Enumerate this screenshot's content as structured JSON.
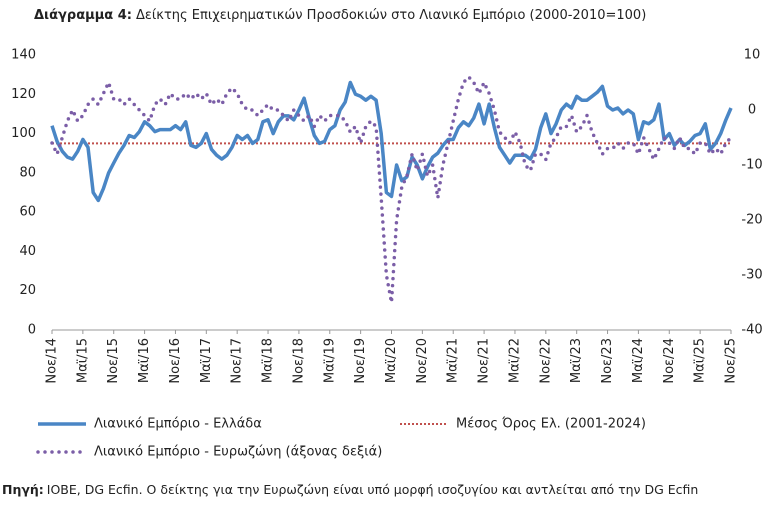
{
  "chart_data": {
    "type": "line",
    "title_bold": "Διάγραμμα 4:",
    "title": "Δείκτης Επιχειρηματικών Προσδοκιών στο Λιανικό Εμπόριο (2000-2010=100)",
    "source_label": "Πηγή:",
    "source": "ΙΟΒΕ, DG Ecfin. Ο δείκτης για την Ευρωζώνη είναι υπό μορφή ισοζυγίου και αντλείται από την DG Ecfin",
    "categories": [
      "Νοε/14",
      null,
      null,
      null,
      null,
      null,
      "Μαϊ/15",
      null,
      null,
      null,
      null,
      null,
      "Νοε/15",
      null,
      null,
      null,
      null,
      null,
      "Μαϊ/16",
      null,
      null,
      null,
      null,
      null,
      "Νοε/16",
      null,
      null,
      null,
      null,
      null,
      "Μαϊ/17",
      null,
      null,
      null,
      null,
      null,
      "Νοε/17",
      null,
      null,
      null,
      null,
      null,
      "Μαϊ/18",
      null,
      null,
      null,
      null,
      null,
      "Νοε/18",
      null,
      null,
      null,
      null,
      null,
      "Μαϊ/19",
      null,
      null,
      null,
      null,
      null,
      "Νοε/19",
      null,
      null,
      null,
      null,
      null,
      "Μαϊ/20",
      null,
      null,
      null,
      null,
      null,
      "Νοε/20",
      null,
      null,
      null,
      null,
      null,
      "Μαϊ/21",
      null,
      null,
      null,
      null,
      null,
      "Νοε/21",
      null,
      null,
      null,
      null,
      null,
      "Μαϊ/22",
      null,
      null,
      null,
      null,
      null,
      "Νοε/22",
      null,
      null,
      null,
      null,
      null,
      "Μαϊ/23",
      null,
      null,
      null,
      null,
      null,
      "Νοε/23",
      null,
      null,
      null,
      null,
      null,
      "Μαϊ/24",
      null,
      null,
      null,
      null,
      null,
      "Νοε/24",
      null,
      null,
      null,
      null,
      null,
      "Μαϊ/25",
      null,
      null,
      null,
      null,
      null,
      "Νοε/25"
    ],
    "series": [
      {
        "name": "Λιανικό Εμπόριο  - Ελλάδα",
        "color": "#4a86c5",
        "style": "solid",
        "axis": "y",
        "values": [
          104,
          96,
          91,
          88,
          87,
          91,
          97,
          93,
          70,
          66,
          72,
          80,
          85,
          90,
          94,
          99,
          98,
          101,
          106,
          104,
          101,
          102,
          102,
          102,
          104,
          102,
          106,
          94,
          93,
          95,
          100,
          92,
          89,
          87,
          89,
          93,
          99,
          97,
          99,
          95,
          97,
          106,
          107,
          100,
          106,
          109,
          109,
          107,
          112,
          118,
          108,
          99,
          95,
          96,
          102,
          104,
          112,
          116,
          126,
          120,
          119,
          117,
          119,
          117,
          100,
          70,
          68,
          84,
          76,
          78,
          88,
          84,
          77,
          83,
          88,
          90,
          94,
          97,
          97,
          103,
          106,
          104,
          108,
          115,
          105,
          115,
          103,
          93,
          89,
          85,
          89,
          89,
          89,
          87,
          92,
          103,
          110,
          100,
          105,
          112,
          115,
          113,
          119,
          117,
          117,
          119,
          121,
          124,
          114,
          112,
          113,
          110,
          112,
          110,
          97,
          106,
          105,
          107,
          115,
          97,
          100,
          94,
          97,
          94,
          96,
          99,
          100,
          105,
          92,
          95,
          100,
          107,
          113
        ]
      },
      {
        "name": "Λιανικό Εμπόριο - Ευρωζώνη (άξονας δεξιά)",
        "color": "#7b5ea7",
        "style": "dotted",
        "axis": "y2",
        "values": [
          -6,
          -8,
          -5,
          -2,
          0,
          -2,
          -1,
          1,
          2,
          1,
          3,
          5,
          2,
          2,
          1,
          2,
          1,
          0,
          -1,
          -2,
          1,
          2,
          1,
          3,
          2,
          2,
          3,
          2,
          3,
          2,
          3,
          1,
          2,
          1,
          3,
          4,
          3,
          1,
          0,
          0,
          -1,
          0,
          1,
          0,
          0,
          -1,
          -2,
          0,
          -1,
          -2,
          -1,
          -3,
          -1,
          -2,
          -1,
          -1,
          -1,
          -2,
          -4,
          -3,
          -6,
          -3,
          -2,
          -3,
          -16,
          -30,
          -35,
          -20,
          -14,
          -12,
          -8,
          -11,
          -8,
          -12,
          -10,
          -16,
          -10,
          -6,
          -2,
          2,
          5,
          6,
          5,
          3,
          5,
          3,
          0,
          -4,
          -5,
          -6,
          -4,
          -6,
          -10,
          -11,
          -8,
          -8,
          -9,
          -6,
          -5,
          -3,
          -3,
          -1,
          -4,
          -3,
          -1,
          -4,
          -6,
          -8,
          -7,
          -7,
          -6,
          -7,
          -6,
          -6,
          -8,
          -5,
          -7,
          -9,
          -7,
          -5,
          -6,
          -7,
          -5,
          -7,
          -7,
          -8,
          -6,
          -6,
          -8,
          -7,
          -8,
          -6,
          -5
        ]
      }
    ],
    "reference_line": {
      "name": "Μέσος Όρος Ελ.  (2001-2024)",
      "value": 95,
      "color": "#c0504d"
    },
    "ylim": [
      0,
      140
    ],
    "yticks": [
      0,
      20,
      40,
      60,
      80,
      100,
      120,
      140
    ],
    "y2lim": [
      -40,
      10
    ],
    "y2ticks": [
      -40,
      -30,
      -20,
      -10,
      0,
      10
    ]
  }
}
